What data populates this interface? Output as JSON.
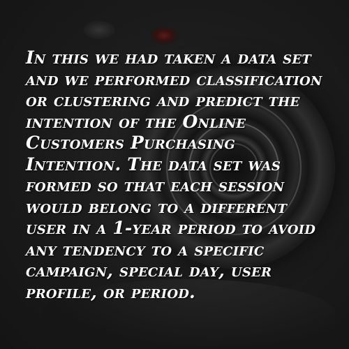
{
  "background": {
    "description_icon": "camera-lens-photo",
    "base_color": "#1a1a1a"
  },
  "text": {
    "color": "#ffffff",
    "paragraph": "In this we had taken a data set and we performed classification or clustering and predict the intention of the Online Customers Purchasing Intention. The data set was formed so that each session would belong to a different user in a  1-year period to avoid any tendency to a specific campaign, special day, user profile, or period."
  }
}
